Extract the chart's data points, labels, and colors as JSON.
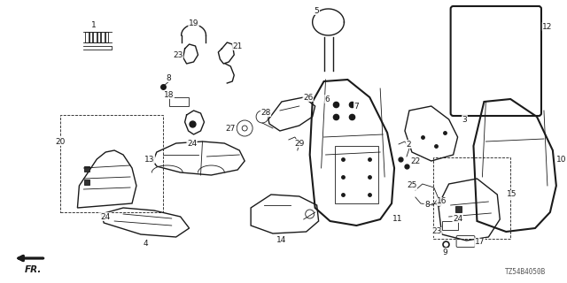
{
  "background_color": "#ffffff",
  "diagram_code": "TZ54B4050B",
  "fr_label": "FR.",
  "figsize": [
    6.4,
    3.2
  ],
  "dpi": 100,
  "line_color": "#1a1a1a",
  "label_fontsize": 6.5
}
